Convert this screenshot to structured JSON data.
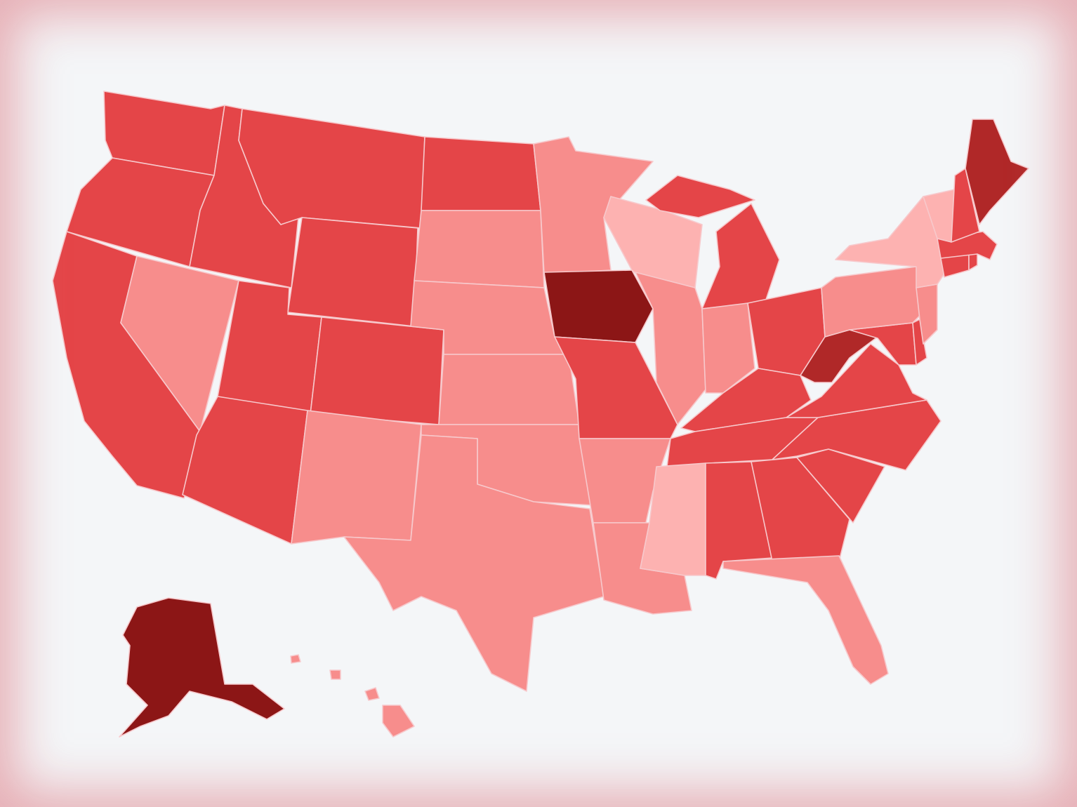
{
  "map": {
    "type": "choropleth",
    "region": "United States",
    "palette": {
      "darkest": "#8c1616",
      "dark": "#b02828",
      "medium": "#e44548",
      "light": "#f78d8c",
      "lightest": "#fdb2b1"
    },
    "states": [
      {
        "code": "WA",
        "level": "medium"
      },
      {
        "code": "OR",
        "level": "medium"
      },
      {
        "code": "CA",
        "level": "medium"
      },
      {
        "code": "ID",
        "level": "medium"
      },
      {
        "code": "NV",
        "level": "light"
      },
      {
        "code": "MT",
        "level": "medium"
      },
      {
        "code": "WY",
        "level": "medium"
      },
      {
        "code": "UT",
        "level": "medium"
      },
      {
        "code": "AZ",
        "level": "medium"
      },
      {
        "code": "CO",
        "level": "medium"
      },
      {
        "code": "NM",
        "level": "light"
      },
      {
        "code": "ND",
        "level": "medium"
      },
      {
        "code": "SD",
        "level": "light"
      },
      {
        "code": "NE",
        "level": "light"
      },
      {
        "code": "KS",
        "level": "light"
      },
      {
        "code": "OK",
        "level": "light"
      },
      {
        "code": "TX",
        "level": "light"
      },
      {
        "code": "MN",
        "level": "light"
      },
      {
        "code": "IA",
        "level": "darkest"
      },
      {
        "code": "MO",
        "level": "medium"
      },
      {
        "code": "AR",
        "level": "light"
      },
      {
        "code": "LA",
        "level": "light"
      },
      {
        "code": "WI",
        "level": "lightest"
      },
      {
        "code": "IL",
        "level": "light"
      },
      {
        "code": "MI",
        "level": "medium"
      },
      {
        "code": "IN",
        "level": "light"
      },
      {
        "code": "OH",
        "level": "medium"
      },
      {
        "code": "KY",
        "level": "medium"
      },
      {
        "code": "TN",
        "level": "medium"
      },
      {
        "code": "MS",
        "level": "lightest"
      },
      {
        "code": "AL",
        "level": "medium"
      },
      {
        "code": "GA",
        "level": "medium"
      },
      {
        "code": "FL",
        "level": "light"
      },
      {
        "code": "SC",
        "level": "medium"
      },
      {
        "code": "NC",
        "level": "medium"
      },
      {
        "code": "VA",
        "level": "medium"
      },
      {
        "code": "WV",
        "level": "dark"
      },
      {
        "code": "MD",
        "level": "medium"
      },
      {
        "code": "DE",
        "level": "medium"
      },
      {
        "code": "PA",
        "level": "light"
      },
      {
        "code": "NJ",
        "level": "light"
      },
      {
        "code": "NY",
        "level": "lightest"
      },
      {
        "code": "CT",
        "level": "medium"
      },
      {
        "code": "RI",
        "level": "medium"
      },
      {
        "code": "MA",
        "level": "medium"
      },
      {
        "code": "VT",
        "level": "lightest"
      },
      {
        "code": "NH",
        "level": "medium"
      },
      {
        "code": "ME",
        "level": "dark"
      },
      {
        "code": "AK",
        "level": "darkest"
      },
      {
        "code": "HI",
        "level": "light"
      }
    ]
  }
}
